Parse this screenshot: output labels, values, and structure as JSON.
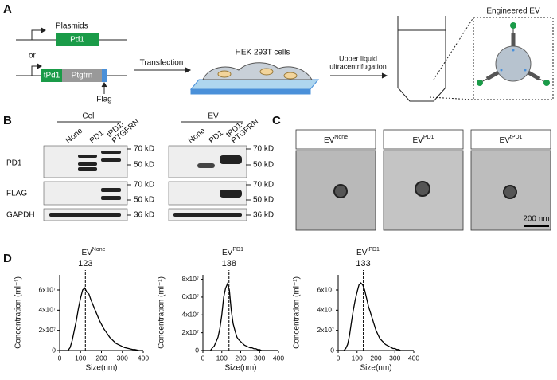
{
  "panel_a": {
    "label": "A",
    "plasmids": "Plasmids",
    "pd1": "Pd1",
    "or": "or",
    "tpd1": "tPd1",
    "ptgfrn": "Ptgfrn",
    "flag": "Flag",
    "transfection": "Transfection",
    "cells": "HEK 293T cells",
    "upper_liquid": "Upper liquid",
    "ultracentrifugation": "ultracentrifugation",
    "engineered_ev": "Engineered EV"
  },
  "panel_b": {
    "label": "B",
    "rows": [
      "PD1",
      "FLAG",
      "GAPDH"
    ],
    "cell": {
      "group": "Cell",
      "lanes": [
        [
          "None"
        ],
        [
          "PD1"
        ],
        [
          "tPD1-",
          "PTGFRN"
        ]
      ],
      "markers": [
        "70 kD",
        "50 kD",
        "70 kD",
        "50 kD",
        "36 kD"
      ]
    },
    "ev": {
      "group": "EV",
      "lanes": [
        [
          "None"
        ],
        [
          "PD1"
        ],
        [
          "tPD1-",
          "PTGFRN"
        ]
      ],
      "markers": [
        "70 kD",
        "50 kD",
        "70 kD",
        "50 kD",
        "36 kD"
      ]
    }
  },
  "panel_c": {
    "label": "C",
    "images": [
      {
        "main": "EV",
        "sup": "None"
      },
      {
        "main": "EV",
        "sup": "PD1"
      },
      {
        "main": "EV",
        "sup": "tPD1"
      }
    ],
    "scale_bar": "200 nm"
  },
  "panel_d": {
    "label": "D"
  },
  "chart_data": [
    {
      "type": "line",
      "title": "EV",
      "title_superscript": "None",
      "peak": 123,
      "xlabel": "Size(nm)",
      "ylabel": "Concentration (ml⁻¹)",
      "color": "#000000",
      "x": [
        0,
        10,
        20,
        30,
        40,
        50,
        60,
        70,
        80,
        90,
        100,
        110,
        120,
        130,
        140,
        150,
        160,
        170,
        180,
        190,
        200,
        210,
        220,
        230,
        240,
        250,
        260,
        270,
        280,
        290,
        300,
        310,
        320,
        330,
        340,
        350,
        360,
        370,
        380,
        390,
        400
      ],
      "values": [
        0,
        0,
        0,
        0,
        0,
        3000000.0,
        10000000.0,
        20000000.0,
        30000000.0,
        42000000.0,
        52000000.0,
        60000000.0,
        62000000.0,
        58000000.0,
        56000000.0,
        50000000.0,
        45000000.0,
        40000000.0,
        35000000.0,
        30000000.0,
        26000000.0,
        22000000.0,
        19000000.0,
        16000000.0,
        13000000.0,
        11000000.0,
        9000000.0,
        7000000.0,
        6000000.0,
        5000000.0,
        4000000.0,
        3000000.0,
        2500000.0,
        2000000.0,
        1500000.0,
        1000000.0,
        1000000.0,
        500000.0,
        0,
        0,
        0
      ],
      "xlim": [
        0,
        400
      ],
      "xticks": [
        0,
        100,
        200,
        300,
        400
      ],
      "ylim": [
        0,
        75000000.0
      ],
      "yticks": [
        0,
        {
          "value": 20000000.0,
          "label": "2x10⁷"
        },
        {
          "value": 40000000.0,
          "label": "4x10⁷"
        },
        {
          "value": 60000000.0,
          "label": "6x10⁷"
        }
      ]
    },
    {
      "type": "line",
      "title": "EV",
      "title_superscript": "PD1",
      "peak": 138,
      "xlabel": "Size(nm)",
      "ylabel": "Concentration (ml⁻¹)",
      "color": "#000000",
      "x": [
        0,
        10,
        20,
        30,
        40,
        50,
        60,
        70,
        80,
        90,
        100,
        110,
        120,
        130,
        140,
        150,
        160,
        170,
        180,
        190,
        200,
        210,
        220,
        230,
        240,
        250,
        260,
        270,
        280,
        290,
        300,
        310,
        320,
        330,
        340,
        350,
        360,
        370,
        380,
        390,
        400
      ],
      "values": [
        0,
        0,
        0,
        0,
        0,
        3000000.0,
        5000000.0,
        10000000.0,
        15000000.0,
        25000000.0,
        40000000.0,
        60000000.0,
        70000000.0,
        75000000.0,
        68000000.0,
        45000000.0,
        30000000.0,
        22000000.0,
        15000000.0,
        12000000.0,
        10000000.0,
        8000000.0,
        6000000.0,
        5000000.0,
        4000000.0,
        3000000.0,
        3000000.0,
        2000000.0,
        2000000.0,
        1000000.0,
        1000000.0,
        0,
        0,
        0,
        0,
        0,
        0,
        0,
        0,
        0,
        0
      ],
      "xlim": [
        0,
        400
      ],
      "xticks": [
        0,
        100,
        200,
        300,
        400
      ],
      "ylim": [
        0,
        85000000.0
      ],
      "yticks": [
        0,
        {
          "value": 20000000.0,
          "label": "2x10⁷"
        },
        {
          "value": 40000000.0,
          "label": "4x10⁷"
        },
        {
          "value": 60000000.0,
          "label": "6x10⁷"
        },
        {
          "value": 80000000.0,
          "label": "8x10⁷"
        }
      ]
    },
    {
      "type": "line",
      "title": "EV",
      "title_superscript": "tPD1",
      "peak": 133,
      "xlabel": "Size(nm)",
      "ylabel": "Concentration (ml⁻¹)",
      "color": "#000000",
      "x": [
        0,
        10,
        20,
        30,
        40,
        50,
        60,
        70,
        80,
        90,
        100,
        110,
        120,
        130,
        140,
        150,
        160,
        170,
        180,
        190,
        200,
        210,
        220,
        230,
        240,
        250,
        260,
        270,
        280,
        290,
        300,
        310,
        320,
        330,
        340,
        350,
        360,
        370,
        380,
        390,
        400
      ],
      "values": [
        0,
        0,
        0,
        0,
        2000000.0,
        6000000.0,
        15000000.0,
        28000000.0,
        40000000.0,
        50000000.0,
        58000000.0,
        65000000.0,
        67000000.0,
        65000000.0,
        60000000.0,
        52000000.0,
        44000000.0,
        38000000.0,
        32000000.0,
        26000000.0,
        20000000.0,
        16000000.0,
        12000000.0,
        10000000.0,
        8000000.0,
        6000000.0,
        5000000.0,
        4000000.0,
        3000000.0,
        2000000.0,
        2000000.0,
        1000000.0,
        1000000.0,
        0,
        0,
        0,
        0,
        0,
        0,
        0,
        0
      ],
      "xlim": [
        0,
        400
      ],
      "xticks": [
        0,
        100,
        200,
        300,
        400
      ],
      "ylim": [
        0,
        75000000.0
      ],
      "yticks": [
        0,
        {
          "value": 20000000.0,
          "label": "2x10⁷"
        },
        {
          "value": 40000000.0,
          "label": "4x10⁷"
        },
        {
          "value": 60000000.0,
          "label": "6x10⁷"
        }
      ]
    }
  ]
}
